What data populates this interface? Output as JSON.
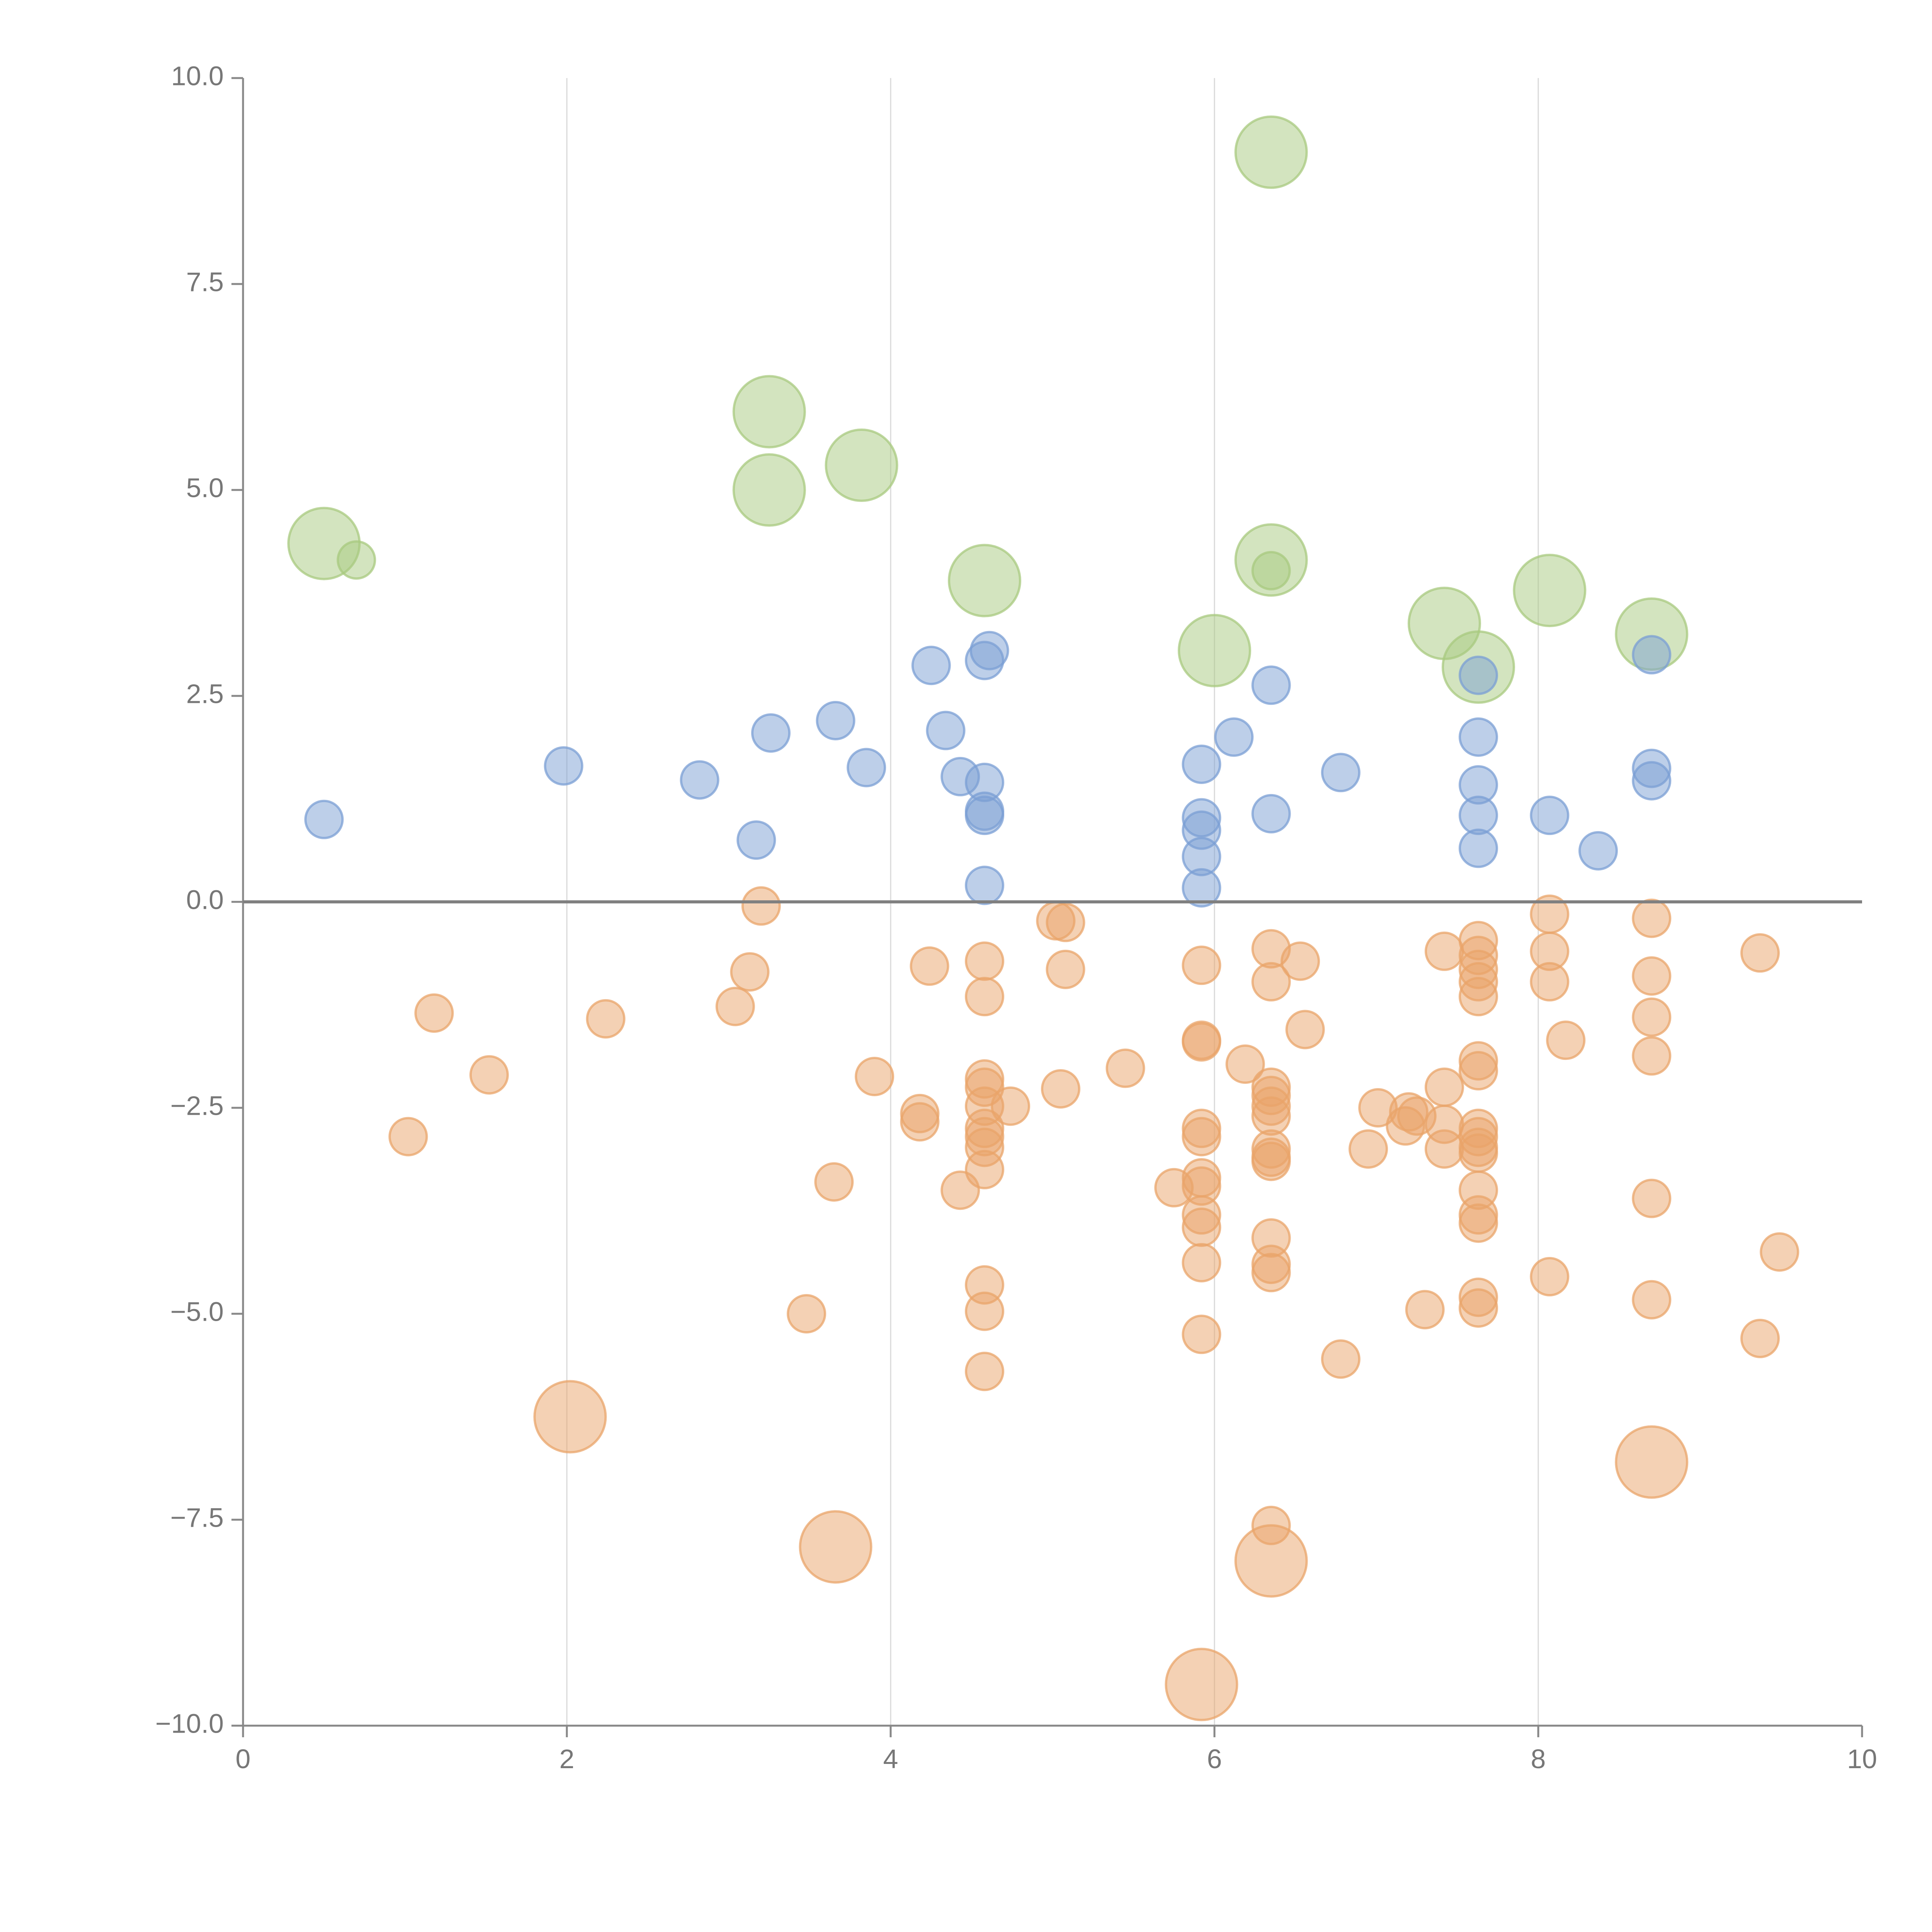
{
  "chart_data": {
    "type": "scatter",
    "title": "",
    "xlabel": "",
    "ylabel": "",
    "xlim": [
      0,
      10
    ],
    "ylim": [
      -10,
      10
    ],
    "grid": "vertical",
    "x_ticks": [
      {
        "value": 0,
        "label": "0"
      },
      {
        "value": 2,
        "label": "2"
      },
      {
        "value": 4,
        "label": "4"
      },
      {
        "value": 6,
        "label": "6"
      },
      {
        "value": 8,
        "label": "8"
      },
      {
        "value": 10,
        "label": "10"
      }
    ],
    "y_ticks": [
      {
        "value": 10,
        "label": "10.0"
      },
      {
        "value": 7.5,
        "label": "7.5"
      },
      {
        "value": 5,
        "label": "5.0"
      },
      {
        "value": 2.5,
        "label": "2.5"
      },
      {
        "value": 0,
        "label": "0.0"
      },
      {
        "value": -2.5,
        "label": "−2.5"
      },
      {
        "value": -5,
        "label": "−5.0"
      },
      {
        "value": -7.5,
        "label": "−7.5"
      },
      {
        "value": -10,
        "label": "−10.0"
      }
    ],
    "reference_line_y": 0,
    "series": [
      {
        "name": "green",
        "color": "#a8c97f",
        "points": [
          [
            6.35,
            9.1,
            2
          ],
          [
            3.25,
            5.95,
            2
          ],
          [
            3.25,
            5.0,
            2
          ],
          [
            3.82,
            5.3,
            2
          ],
          [
            0.5,
            4.35,
            2
          ],
          [
            0.7,
            4.15,
            1
          ],
          [
            4.58,
            3.9,
            2
          ],
          [
            6.35,
            4.15,
            2
          ],
          [
            6.35,
            4.02,
            1
          ],
          [
            8.07,
            3.78,
            2
          ],
          [
            7.42,
            3.38,
            2
          ],
          [
            8.7,
            3.25,
            2
          ],
          [
            6.0,
            3.05,
            2
          ],
          [
            7.63,
            2.85,
            2
          ]
        ]
      },
      {
        "name": "blue",
        "color": "#7b9fd4",
        "points": [
          [
            0.5,
            1.0,
            1
          ],
          [
            1.98,
            1.65,
            1
          ],
          [
            2.82,
            1.48,
            1
          ],
          [
            3.17,
            0.75,
            1
          ],
          [
            3.26,
            2.05,
            1
          ],
          [
            3.66,
            2.2,
            1
          ],
          [
            3.85,
            1.63,
            1
          ],
          [
            4.25,
            2.87,
            1
          ],
          [
            4.34,
            2.08,
            1
          ],
          [
            4.43,
            1.52,
            1
          ],
          [
            4.58,
            2.93,
            1
          ],
          [
            4.61,
            3.05,
            1
          ],
          [
            4.58,
            1.45,
            1
          ],
          [
            4.58,
            1.1,
            1
          ],
          [
            4.58,
            1.05,
            1
          ],
          [
            4.58,
            0.2,
            1
          ],
          [
            5.92,
            1.67,
            1
          ],
          [
            5.92,
            1.02,
            1
          ],
          [
            5.92,
            0.87,
            1
          ],
          [
            5.92,
            0.55,
            1
          ],
          [
            5.92,
            0.17,
            1
          ],
          [
            6.12,
            2.0,
            1
          ],
          [
            6.35,
            2.63,
            1
          ],
          [
            6.35,
            1.07,
            1
          ],
          [
            6.78,
            1.57,
            1
          ],
          [
            7.63,
            2.75,
            1
          ],
          [
            7.63,
            2.0,
            1
          ],
          [
            7.63,
            1.42,
            1
          ],
          [
            7.63,
            1.05,
            1
          ],
          [
            7.63,
            0.65,
            1
          ],
          [
            8.07,
            1.05,
            1
          ],
          [
            8.37,
            0.62,
            1
          ],
          [
            8.7,
            3.0,
            1
          ],
          [
            8.7,
            1.62,
            1
          ],
          [
            8.7,
            1.47,
            1
          ]
        ]
      },
      {
        "name": "orange",
        "color": "#e9a46a",
        "points": [
          [
            3.2,
            -0.05,
            1
          ],
          [
            3.13,
            -0.85,
            1
          ],
          [
            3.04,
            -1.27,
            1
          ],
          [
            1.18,
            -1.35,
            1
          ],
          [
            2.24,
            -1.42,
            1
          ],
          [
            1.52,
            -2.1,
            1
          ],
          [
            1.02,
            -2.85,
            1
          ],
          [
            3.9,
            -2.12,
            1
          ],
          [
            4.24,
            -0.78,
            1
          ],
          [
            4.18,
            -2.57,
            1
          ],
          [
            4.18,
            -2.67,
            1
          ],
          [
            3.65,
            -3.4,
            1
          ],
          [
            3.48,
            -5.0,
            1
          ],
          [
            4.58,
            -0.72,
            1
          ],
          [
            4.58,
            -1.15,
            1
          ],
          [
            4.58,
            -2.15,
            1
          ],
          [
            4.58,
            -2.25,
            1
          ],
          [
            4.58,
            -2.48,
            1
          ],
          [
            4.58,
            -2.75,
            1
          ],
          [
            4.58,
            -2.85,
            1
          ],
          [
            4.58,
            -2.98,
            1
          ],
          [
            4.58,
            -3.25,
            1
          ],
          [
            4.43,
            -3.5,
            1
          ],
          [
            4.74,
            -2.48,
            1
          ],
          [
            4.58,
            -4.65,
            1
          ],
          [
            4.58,
            -4.97,
            1
          ],
          [
            4.58,
            -5.7,
            1
          ],
          [
            5.02,
            -0.23,
            1
          ],
          [
            5.08,
            -0.25,
            1
          ],
          [
            5.08,
            -0.82,
            1
          ],
          [
            5.05,
            -2.27,
            1
          ],
          [
            5.45,
            -2.02,
            1
          ],
          [
            5.92,
            -0.77,
            1
          ],
          [
            5.92,
            -1.68,
            1
          ],
          [
            5.92,
            -1.7,
            1
          ],
          [
            5.92,
            -2.75,
            1
          ],
          [
            5.92,
            -2.85,
            1
          ],
          [
            5.92,
            -3.35,
            1
          ],
          [
            5.92,
            -3.45,
            1
          ],
          [
            5.75,
            -3.47,
            1
          ],
          [
            5.92,
            -3.8,
            1
          ],
          [
            5.92,
            -3.95,
            1
          ],
          [
            5.92,
            -4.38,
            1
          ],
          [
            5.92,
            -5.25,
            1
          ],
          [
            6.19,
            -1.97,
            1
          ],
          [
            6.35,
            -0.57,
            1
          ],
          [
            6.35,
            -0.97,
            1
          ],
          [
            6.35,
            -2.25,
            1
          ],
          [
            6.35,
            -2.35,
            1
          ],
          [
            6.35,
            -2.48,
            1
          ],
          [
            6.35,
            -2.6,
            1
          ],
          [
            6.35,
            -3.0,
            1
          ],
          [
            6.35,
            -3.1,
            1
          ],
          [
            6.35,
            -3.15,
            1
          ],
          [
            6.35,
            -4.08,
            1
          ],
          [
            6.35,
            -4.4,
            1
          ],
          [
            6.35,
            -4.5,
            1
          ],
          [
            6.35,
            -7.57,
            1
          ],
          [
            6.53,
            -0.72,
            1
          ],
          [
            6.56,
            -1.55,
            1
          ],
          [
            6.78,
            -5.55,
            1
          ],
          [
            6.95,
            -3.0,
            1
          ],
          [
            7.01,
            -2.5,
            1
          ],
          [
            7.18,
            -2.72,
            1
          ],
          [
            7.2,
            -2.55,
            1
          ],
          [
            7.25,
            -2.6,
            1
          ],
          [
            7.3,
            -4.95,
            1
          ],
          [
            7.42,
            -0.6,
            1
          ],
          [
            7.42,
            -2.25,
            1
          ],
          [
            7.42,
            -2.7,
            1
          ],
          [
            7.42,
            -3.0,
            1
          ],
          [
            7.63,
            -0.47,
            1
          ],
          [
            7.63,
            -0.65,
            1
          ],
          [
            7.63,
            -0.82,
            1
          ],
          [
            7.63,
            -0.97,
            1
          ],
          [
            7.63,
            -1.15,
            1
          ],
          [
            7.63,
            -1.93,
            1
          ],
          [
            7.63,
            -2.05,
            1
          ],
          [
            7.63,
            -2.75,
            1
          ],
          [
            7.63,
            -2.85,
            1
          ],
          [
            7.63,
            -2.98,
            1
          ],
          [
            7.63,
            -3.05,
            1
          ],
          [
            7.63,
            -3.5,
            1
          ],
          [
            7.63,
            -3.8,
            1
          ],
          [
            7.63,
            -3.9,
            1
          ],
          [
            7.63,
            -4.8,
            1
          ],
          [
            7.63,
            -4.93,
            1
          ],
          [
            8.07,
            -0.15,
            1
          ],
          [
            8.07,
            -0.6,
            1
          ],
          [
            8.07,
            -0.97,
            1
          ],
          [
            8.17,
            -1.68,
            1
          ],
          [
            8.07,
            -4.55,
            1
          ],
          [
            8.7,
            -0.2,
            1
          ],
          [
            8.7,
            -0.9,
            1
          ],
          [
            8.7,
            -1.4,
            1
          ],
          [
            8.7,
            -1.87,
            1
          ],
          [
            8.7,
            -3.6,
            1
          ],
          [
            8.7,
            -4.83,
            1
          ],
          [
            9.37,
            -0.62,
            1
          ],
          [
            9.49,
            -4.25,
            1
          ],
          [
            9.37,
            -5.3,
            1
          ],
          [
            2.02,
            -6.25,
            2
          ],
          [
            3.66,
            -7.83,
            2
          ],
          [
            6.35,
            -8.0,
            2
          ],
          [
            5.92,
            -9.5,
            2
          ],
          [
            8.7,
            -6.8,
            2
          ]
        ]
      }
    ]
  }
}
